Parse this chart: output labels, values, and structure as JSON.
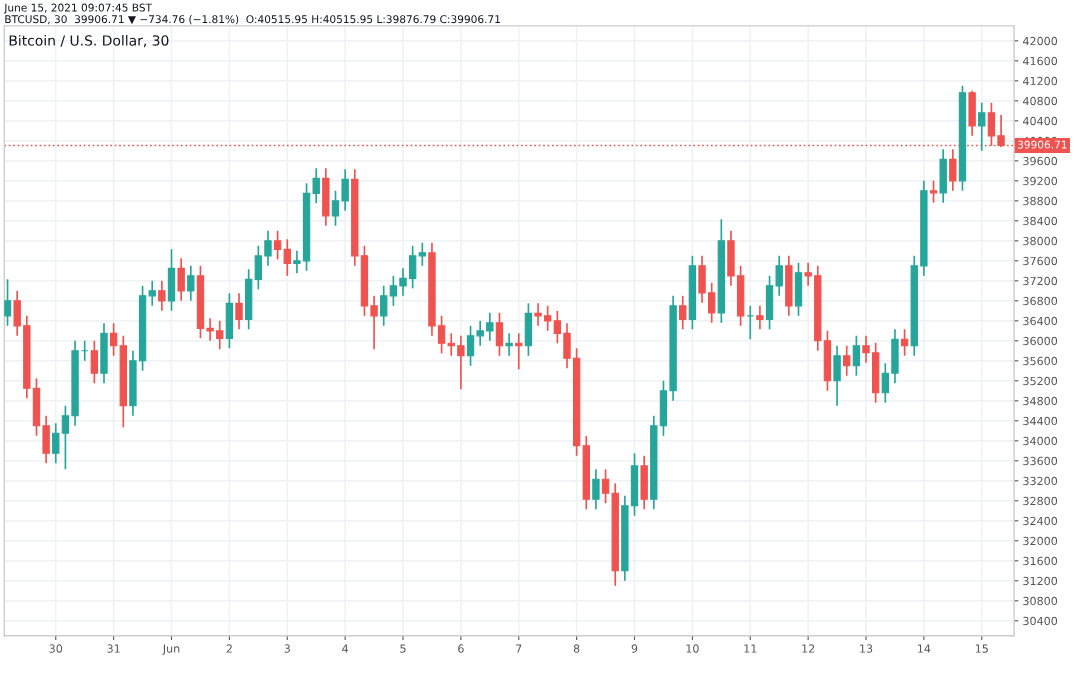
{
  "chart_data": {
    "type": "candlestick",
    "title": "Bitcoin / U.S. Dollar, 30",
    "annotations": [
      "June 15, 2021 09:07:45 BST",
      "BTCUSD, 30  39906.71 ▼ −734.76 (−1.81%)  O:40515.95 H:40515.95 L:39876.79 C:39906.71"
    ],
    "colors": [
      "#26a69a",
      "#ef5350",
      "#ef5350",
      "#ef5350",
      "#ef5350",
      "#26a69a",
      "#26a69a",
      "#26a69a",
      "#26a69a",
      "#ef5350",
      "#26a69a",
      "#ef5350",
      "#ef5350",
      "#26a69a",
      "#26a69a",
      "#26a69a",
      "#ef5350",
      "#26a69a",
      "#ef5350",
      "#26a69a",
      "#ef5350",
      "#ef5350",
      "#ef5350",
      "#26a69a",
      "#ef5350",
      "#26a69a",
      "#26a69a",
      "#26a69a",
      "#ef5350",
      "#ef5350",
      "#26a69a",
      "#26a69a",
      "#26a69a",
      "#ef5350",
      "#26a69a",
      "#26a69a",
      "#ef5350",
      "#ef5350",
      "#ef5350",
      "#26a69a",
      "#26a69a",
      "#26a69a",
      "#26a69a",
      "#26a69a",
      "#ef5350",
      "#ef5350",
      "#ef5350",
      "#ef5350",
      "#26a69a",
      "#26a69a",
      "#26a69a",
      "#ef5350",
      "#26a69a",
      "#ef5350",
      "#26a69a",
      "#ef5350",
      "#ef5350",
      "#ef5350",
      "#ef5350",
      "#ef5350",
      "#ef5350",
      "#26a69a",
      "#ef5350",
      "#ef5350",
      "#26a69a",
      "#26a69a",
      "#ef5350",
      "#26a69a",
      "#26a69a",
      "#26a69a",
      "#ef5350",
      "#26a69a",
      "#ef5350",
      "#ef5350",
      "#26a69a",
      "#ef5350",
      "#ef5350",
      "#26a69a",
      "#ef5350",
      "#26a69a",
      "#26a69a",
      "#ef5350",
      "#26a69a",
      "#ef5350",
      "#ef5350",
      "#ef5350",
      "#26a69a",
      "#ef5350",
      "#26a69a",
      "#ef5350",
      "#ef5350",
      "#26a69a",
      "#26a69a",
      "#ef5350",
      "#26a69a",
      "#26a69a",
      "#ef5350",
      "#26a69a",
      "#ef5350",
      "#26a69a",
      "#ef5350",
      "#26a69a",
      "#ef5350",
      "#ef5350"
    ],
    "x": [
      "2021-05-29T04:00",
      "2021-05-29T08:00",
      "2021-05-29T12:00",
      "2021-05-29T16:00",
      "2021-05-29T20:00",
      "2021-05-30T00:00",
      "2021-05-30T04:00",
      "2021-05-30T08:00",
      "2021-05-30T12:00",
      "2021-05-30T16:00",
      "2021-05-30T20:00",
      "2021-05-31T00:00",
      "2021-05-31T04:00",
      "2021-05-31T08:00",
      "2021-05-31T12:00",
      "2021-05-31T16:00",
      "2021-05-31T20:00",
      "2021-06-01T00:00",
      "2021-06-01T04:00",
      "2021-06-01T08:00",
      "2021-06-01T12:00",
      "2021-06-01T16:00",
      "2021-06-01T20:00",
      "2021-06-02T00:00",
      "2021-06-02T04:00",
      "2021-06-02T08:00",
      "2021-06-02T12:00",
      "2021-06-02T16:00",
      "2021-06-02T20:00",
      "2021-06-03T00:00",
      "2021-06-03T04:00",
      "2021-06-03T08:00",
      "2021-06-03T12:00",
      "2021-06-03T16:00",
      "2021-06-03T20:00",
      "2021-06-04T00:00",
      "2021-06-04T04:00",
      "2021-06-04T08:00",
      "2021-06-04T12:00",
      "2021-06-04T16:00",
      "2021-06-04T20:00",
      "2021-06-05T00:00",
      "2021-06-05T04:00",
      "2021-06-05T08:00",
      "2021-06-05T12:00",
      "2021-06-05T16:00",
      "2021-06-05T20:00",
      "2021-06-06T00:00",
      "2021-06-06T04:00",
      "2021-06-06T08:00",
      "2021-06-06T12:00",
      "2021-06-06T16:00",
      "2021-06-06T20:00",
      "2021-06-07T00:00",
      "2021-06-07T04:00",
      "2021-06-07T08:00",
      "2021-06-07T12:00",
      "2021-06-07T16:00",
      "2021-06-07T20:00",
      "2021-06-08T00:00",
      "2021-06-08T04:00",
      "2021-06-08T08:00",
      "2021-06-08T12:00",
      "2021-06-08T16:00",
      "2021-06-08T20:00",
      "2021-06-09T00:00",
      "2021-06-09T04:00",
      "2021-06-09T08:00",
      "2021-06-09T12:00",
      "2021-06-09T16:00",
      "2021-06-09T20:00",
      "2021-06-10T00:00",
      "2021-06-10T04:00",
      "2021-06-10T08:00",
      "2021-06-10T12:00",
      "2021-06-10T16:00",
      "2021-06-10T20:00",
      "2021-06-11T00:00",
      "2021-06-11T04:00",
      "2021-06-11T08:00",
      "2021-06-11T12:00",
      "2021-06-11T16:00",
      "2021-06-11T20:00",
      "2021-06-12T00:00",
      "2021-06-12T04:00",
      "2021-06-12T08:00",
      "2021-06-12T12:00",
      "2021-06-12T16:00",
      "2021-06-12T20:00",
      "2021-06-13T00:00",
      "2021-06-13T04:00",
      "2021-06-13T08:00",
      "2021-06-13T12:00",
      "2021-06-13T16:00",
      "2021-06-13T20:00",
      "2021-06-14T00:00",
      "2021-06-14T04:00",
      "2021-06-14T08:00",
      "2021-06-14T12:00",
      "2021-06-14T16:00",
      "2021-06-14T20:00",
      "2021-06-15T00:00",
      "2021-06-15T04:00",
      "2021-06-15T08:00"
    ],
    "ohlc": [
      [
        36500,
        37230,
        36300,
        36800
      ],
      [
        36800,
        37000,
        36100,
        36300
      ],
      [
        36300,
        36500,
        34850,
        35050
      ],
      [
        35050,
        35250,
        34100,
        34300
      ],
      [
        34300,
        34500,
        33550,
        33750
      ],
      [
        33750,
        34350,
        33550,
        34150
      ],
      [
        34150,
        34700,
        33430,
        34500
      ],
      [
        34500,
        36000,
        34300,
        35800
      ],
      [
        35800,
        36000,
        35600,
        35800
      ],
      [
        35800,
        36000,
        35150,
        35350
      ],
      [
        35350,
        36350,
        35150,
        36150
      ],
      [
        36150,
        36350,
        35700,
        35900
      ],
      [
        35900,
        36100,
        34270,
        34700
      ],
      [
        34700,
        35800,
        34500,
        35600
      ],
      [
        35600,
        37100,
        35400,
        36900
      ],
      [
        36900,
        37200,
        36700,
        37000
      ],
      [
        37000,
        37200,
        36600,
        36800
      ],
      [
        36800,
        37830,
        36600,
        37450
      ],
      [
        37450,
        37650,
        36800,
        37000
      ],
      [
        37000,
        37500,
        36800,
        37300
      ],
      [
        37300,
        37500,
        36050,
        36250
      ],
      [
        36250,
        36450,
        36000,
        36200
      ],
      [
        36200,
        36400,
        35830,
        36050
      ],
      [
        36050,
        36950,
        35850,
        36750
      ],
      [
        36750,
        36950,
        36230,
        36430
      ],
      [
        36430,
        37430,
        36230,
        37230
      ],
      [
        37230,
        37900,
        37030,
        37700
      ],
      [
        37700,
        38200,
        37500,
        38000
      ],
      [
        38000,
        38200,
        37630,
        37830
      ],
      [
        37830,
        38030,
        37300,
        37550
      ],
      [
        37550,
        37800,
        37350,
        37600
      ],
      [
        37600,
        39150,
        37400,
        38950
      ],
      [
        38950,
        39450,
        38750,
        39250
      ],
      [
        39250,
        39450,
        38300,
        38500
      ],
      [
        38500,
        39000,
        38300,
        38800
      ],
      [
        38800,
        39430,
        38600,
        39230
      ],
      [
        39230,
        39430,
        37500,
        37700
      ],
      [
        37700,
        37900,
        36500,
        36700
      ],
      [
        36700,
        36900,
        35830,
        36500
      ],
      [
        36500,
        37100,
        36300,
        36900
      ],
      [
        36900,
        37300,
        36700,
        37100
      ],
      [
        37100,
        37450,
        36900,
        37250
      ],
      [
        37250,
        37900,
        37050,
        37700
      ],
      [
        37700,
        37960,
        37500,
        37760
      ],
      [
        37760,
        37960,
        36100,
        36300
      ],
      [
        36300,
        36500,
        35750,
        35950
      ],
      [
        35950,
        36150,
        35700,
        35900
      ],
      [
        35900,
        36100,
        35030,
        35700
      ],
      [
        35700,
        36300,
        35500,
        36100
      ],
      [
        36100,
        36400,
        35900,
        36200
      ],
      [
        36200,
        36560,
        36000,
        36360
      ],
      [
        36360,
        36560,
        35700,
        35900
      ],
      [
        35900,
        36150,
        35700,
        35950
      ],
      [
        35950,
        36150,
        35430,
        35900
      ],
      [
        35900,
        36750,
        35700,
        36550
      ],
      [
        36550,
        36750,
        36300,
        36500
      ],
      [
        36500,
        36700,
        36200,
        36400
      ],
      [
        36400,
        36600,
        35950,
        36150
      ],
      [
        36150,
        36350,
        35450,
        35650
      ],
      [
        35650,
        35850,
        33700,
        33900
      ],
      [
        33900,
        34100,
        32630,
        32830
      ],
      [
        32830,
        33430,
        32630,
        33230
      ],
      [
        33230,
        33430,
        32750,
        32950
      ],
      [
        32950,
        33150,
        31100,
        31400
      ],
      [
        31400,
        32900,
        31200,
        32700
      ],
      [
        32700,
        33750,
        32500,
        33500
      ],
      [
        33500,
        33700,
        32630,
        32830
      ],
      [
        32830,
        34500,
        32630,
        34300
      ],
      [
        34300,
        35200,
        34100,
        35000
      ],
      [
        35000,
        36900,
        34800,
        36700
      ],
      [
        36700,
        36900,
        36230,
        36430
      ],
      [
        36430,
        37700,
        36230,
        37500
      ],
      [
        37500,
        37700,
        36760,
        36960
      ],
      [
        36960,
        37160,
        36360,
        36560
      ],
      [
        36560,
        38430,
        36360,
        38000
      ],
      [
        38000,
        38200,
        37100,
        37300
      ],
      [
        37300,
        37500,
        36300,
        36500
      ],
      [
        36500,
        36700,
        36030,
        36500
      ],
      [
        36500,
        36700,
        36230,
        36430
      ],
      [
        36430,
        37300,
        36230,
        37100
      ],
      [
        37100,
        37700,
        36900,
        37500
      ],
      [
        37500,
        37700,
        36500,
        36700
      ],
      [
        36700,
        37560,
        36500,
        37360
      ],
      [
        37360,
        37560,
        37100,
        37300
      ],
      [
        37300,
        37500,
        35800,
        36000
      ],
      [
        36000,
        36200,
        35000,
        35200
      ],
      [
        35200,
        35900,
        34700,
        35700
      ],
      [
        35700,
        35900,
        35300,
        35500
      ],
      [
        35500,
        36100,
        35300,
        35900
      ],
      [
        35900,
        36100,
        35560,
        35760
      ],
      [
        35760,
        35960,
        34760,
        34960
      ],
      [
        34960,
        35550,
        34760,
        35350
      ],
      [
        35350,
        36230,
        35150,
        36030
      ],
      [
        36030,
        36230,
        35700,
        35900
      ],
      [
        35900,
        37700,
        35700,
        37500
      ],
      [
        37500,
        39200,
        37300,
        39000
      ],
      [
        39000,
        39200,
        38760,
        38960
      ],
      [
        38960,
        39830,
        38760,
        39630
      ],
      [
        39630,
        39830,
        39000,
        39200
      ],
      [
        39200,
        41100,
        39000,
        40960
      ],
      [
        40960,
        41000,
        40100,
        40300
      ],
      [
        40300,
        40760,
        39800,
        40560
      ],
      [
        40560,
        40760,
        39900,
        40100
      ],
      [
        40100,
        40516,
        39877,
        39907
      ]
    ],
    "xlim": [
      "2021-05-29T02:40",
      "2021-06-15T13:25"
    ],
    "xticks": [
      {
        "value": "2021-05-30",
        "label": "30"
      },
      {
        "value": "2021-05-31",
        "label": "31"
      },
      {
        "value": "2021-06-01",
        "label": "Jun"
      },
      {
        "value": "2021-06-02",
        "label": "2"
      },
      {
        "value": "2021-06-03",
        "label": "3"
      },
      {
        "value": "2021-06-04",
        "label": "4"
      },
      {
        "value": "2021-06-05",
        "label": "5"
      },
      {
        "value": "2021-06-06",
        "label": "6"
      },
      {
        "value": "2021-06-07",
        "label": "7"
      },
      {
        "value": "2021-06-08",
        "label": "8"
      },
      {
        "value": "2021-06-09",
        "label": "9"
      },
      {
        "value": "2021-06-10",
        "label": "10"
      },
      {
        "value": "2021-06-11",
        "label": "11"
      },
      {
        "value": "2021-06-12",
        "label": "12"
      },
      {
        "value": "2021-06-13",
        "label": "13"
      },
      {
        "value": "2021-06-14",
        "label": "14"
      },
      {
        "value": "2021-06-15",
        "label": "15"
      }
    ],
    "ylim": [
      30100,
      42300
    ],
    "yticks": [
      30400,
      30800,
      31200,
      31600,
      32000,
      32400,
      32800,
      33200,
      33600,
      34000,
      34400,
      34800,
      35200,
      35600,
      36000,
      36400,
      36800,
      37200,
      37600,
      38000,
      38400,
      38800,
      39200,
      39600,
      40000,
      40400,
      40800,
      41200,
      41600,
      42000
    ],
    "ref_lines": [
      {
        "axis": "y",
        "value": 39906.71,
        "label": "39906.71",
        "color": "#ef5350",
        "line_style": "dotted"
      }
    ],
    "grid": true
  }
}
